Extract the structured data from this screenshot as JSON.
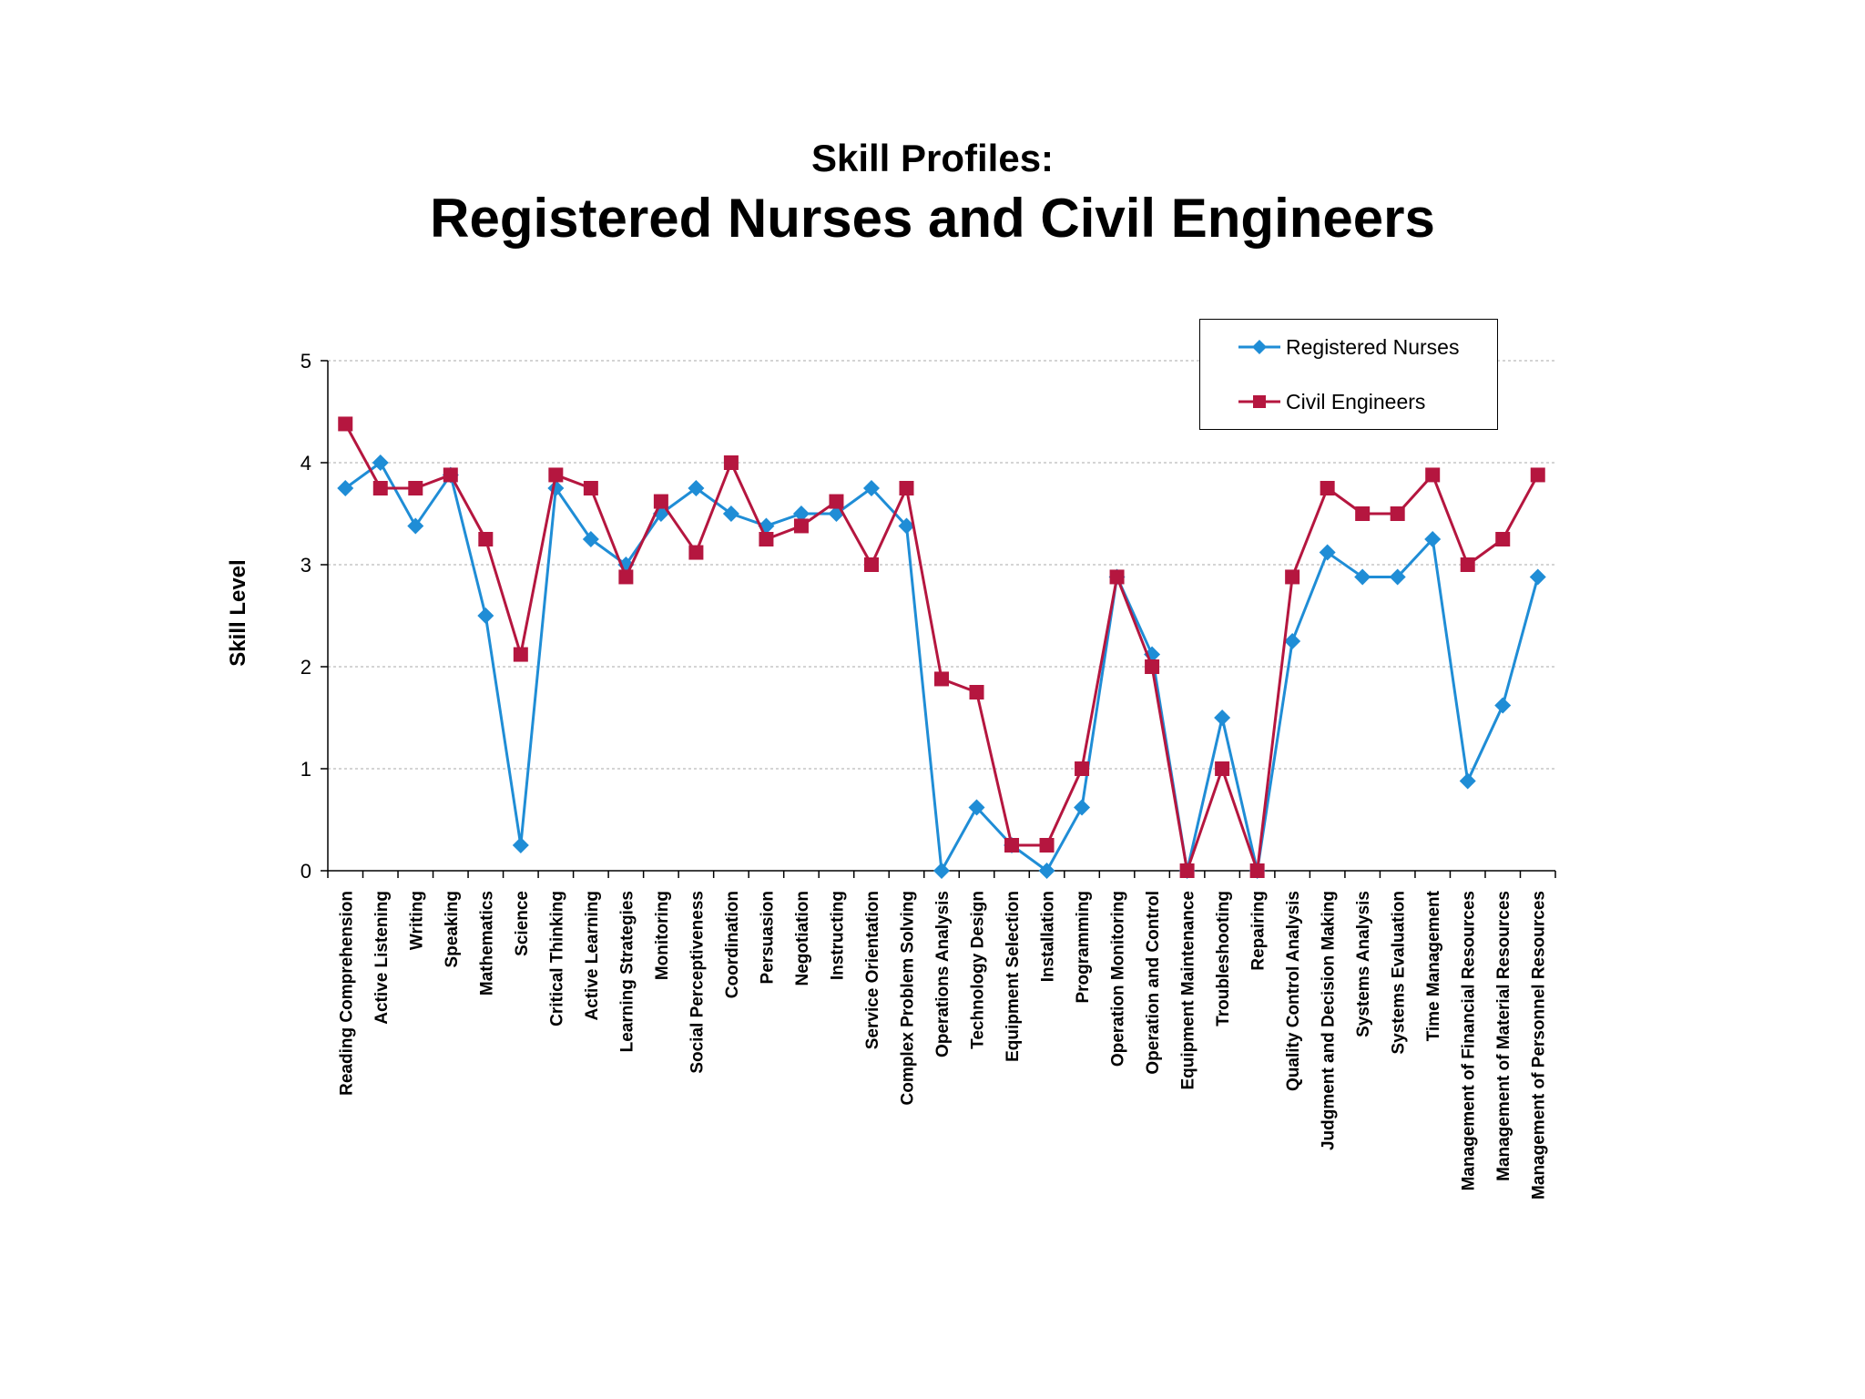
{
  "chart_data": {
    "type": "line",
    "title": "Skill Profiles:",
    "subtitle": "Registered Nurses and Civil Engineers",
    "ylabel": "Skill Level",
    "ylim": [
      0,
      5
    ],
    "yticks": [
      "0",
      "1",
      "2",
      "3",
      "4",
      "5"
    ],
    "grid": true,
    "legend_position": "top-right",
    "categories": [
      "Reading Comprehension",
      "Active Listening",
      "Writing",
      "Speaking",
      "Mathematics",
      "Science",
      "Critical Thinking",
      "Active Learning",
      "Learning Strategies",
      "Monitoring",
      "Social Perceptiveness",
      "Coordination",
      "Persuasion",
      "Negotiation",
      "Instructing",
      "Service Orientation",
      "Complex Problem Solving",
      "Operations Analysis",
      "Technology Design",
      "Equipment Selection",
      "Installation",
      "Programming",
      "Operation Monitoring",
      "Operation and Control",
      "Equipment Maintenance",
      "Troubleshooting",
      "Repairing",
      "Quality Control Analysis",
      "Judgment and Decision Making",
      "Systems Analysis",
      "Systems Evaluation",
      "Time Management",
      "Management of Financial Resources",
      "Management of Material Resources",
      "Management of Personnel Resources"
    ],
    "series": [
      {
        "name": "Registered Nurses",
        "color": "#1f8dd6",
        "marker": "diamond",
        "values": [
          3.75,
          4.0,
          3.38,
          3.88,
          2.5,
          0.25,
          3.75,
          3.25,
          3.0,
          3.5,
          3.75,
          3.5,
          3.38,
          3.5,
          3.5,
          3.75,
          3.38,
          0.0,
          0.62,
          0.25,
          0.0,
          0.62,
          2.88,
          2.12,
          0.0,
          1.5,
          0.0,
          2.25,
          3.12,
          2.88,
          2.88,
          3.25,
          0.88,
          1.62,
          2.88
        ]
      },
      {
        "name": "Civil Engineers",
        "color": "#b5163f",
        "marker": "square",
        "values": [
          4.38,
          3.75,
          3.75,
          3.88,
          3.25,
          2.12,
          3.88,
          3.75,
          2.88,
          3.62,
          3.12,
          4.0,
          3.25,
          3.38,
          3.62,
          3.0,
          3.75,
          1.88,
          1.75,
          0.25,
          0.25,
          1.0,
          2.88,
          2.0,
          0.0,
          1.0,
          0.0,
          2.88,
          3.75,
          3.5,
          3.5,
          3.88,
          3.0,
          3.25,
          3.88
        ]
      }
    ]
  }
}
